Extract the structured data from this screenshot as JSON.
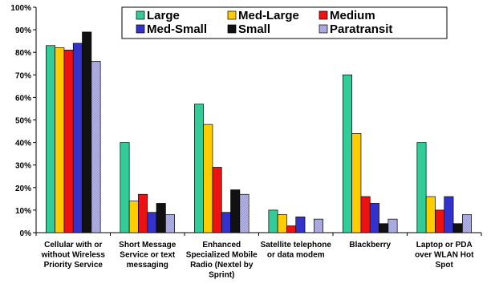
{
  "chart_data": {
    "type": "bar",
    "title": "",
    "xlabel": "",
    "ylabel": "",
    "ylim": [
      0,
      100
    ],
    "y_tick_labels": [
      "0%",
      "10%",
      "20%",
      "30%",
      "40%",
      "50%",
      "60%",
      "70%",
      "80%",
      "90%",
      "100%"
    ],
    "grid": false,
    "legend_position": "top",
    "categories": [
      [
        "Cellular with or",
        "without Wireless",
        "Priority Service"
      ],
      [
        "Short Message",
        "Service or text",
        "messaging"
      ],
      [
        "Enhanced",
        "Specialized Mobile",
        "Radio (Nextel by",
        "Sprint)"
      ],
      [
        "Satellite telephone",
        "or data modem"
      ],
      [
        "Blackberry"
      ],
      [
        "Laptop or PDA",
        "over WLAN Hot",
        "Spot"
      ]
    ],
    "series": [
      {
        "name": "Large",
        "color": "#33cc99",
        "values": [
          83,
          40,
          57,
          10,
          70,
          40
        ]
      },
      {
        "name": "Med-Large",
        "color": "#ffcc00",
        "values": [
          82,
          14,
          48,
          8,
          44,
          16
        ]
      },
      {
        "name": "Medium",
        "color": "#ee1111",
        "values": [
          81,
          17,
          29,
          3,
          16,
          10
        ]
      },
      {
        "name": "Med-Small",
        "color": "#3333cc",
        "values": [
          84,
          9,
          9,
          7,
          13,
          16
        ]
      },
      {
        "name": "Small",
        "color": "#111111",
        "values": [
          89,
          13,
          19,
          0,
          4,
          4
        ]
      },
      {
        "name": "Paratransit",
        "color": "#b3b3e6",
        "values": [
          76,
          8,
          17,
          6,
          6,
          8
        ]
      }
    ]
  }
}
